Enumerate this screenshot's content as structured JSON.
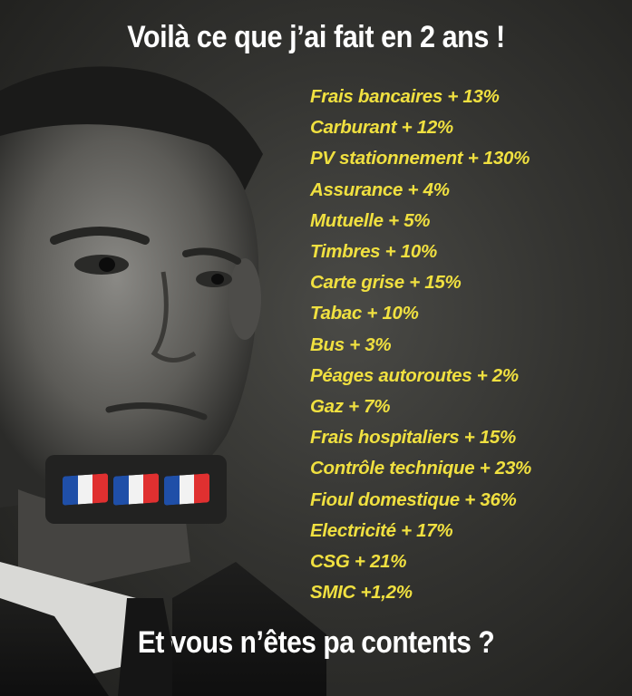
{
  "title": "Voilà ce que j’ai fait en 2 ans !",
  "items": [
    "Frais bancaires + 13%",
    "Carburant + 12%",
    "PV stationnement + 130%",
    "Assurance + 4%",
    "Mutuelle + 5%",
    "Timbres + 10%",
    "Carte grise + 15%",
    "Tabac + 10%",
    "Bus + 3%",
    "Péages autoroutes + 2%",
    "Gaz + 7%",
    "Frais hospitaliers + 15%",
    "Contrôle technique + 23%",
    "Fioul domestique + 36%",
    "Electricité + 17%",
    "CSG + 21%",
    "SMIC +1,2%"
  ],
  "footer": "Et vous n’êtes pa contents ?",
  "flag_emojis": {
    "count": 3,
    "icon": "france-flag-icon",
    "colors": [
      "#1f4fa8",
      "#f2f2f2",
      "#e03030"
    ]
  },
  "colors": {
    "item_text": "#f0e040",
    "title_text": "#ffffff",
    "background": "#2a2a28"
  }
}
